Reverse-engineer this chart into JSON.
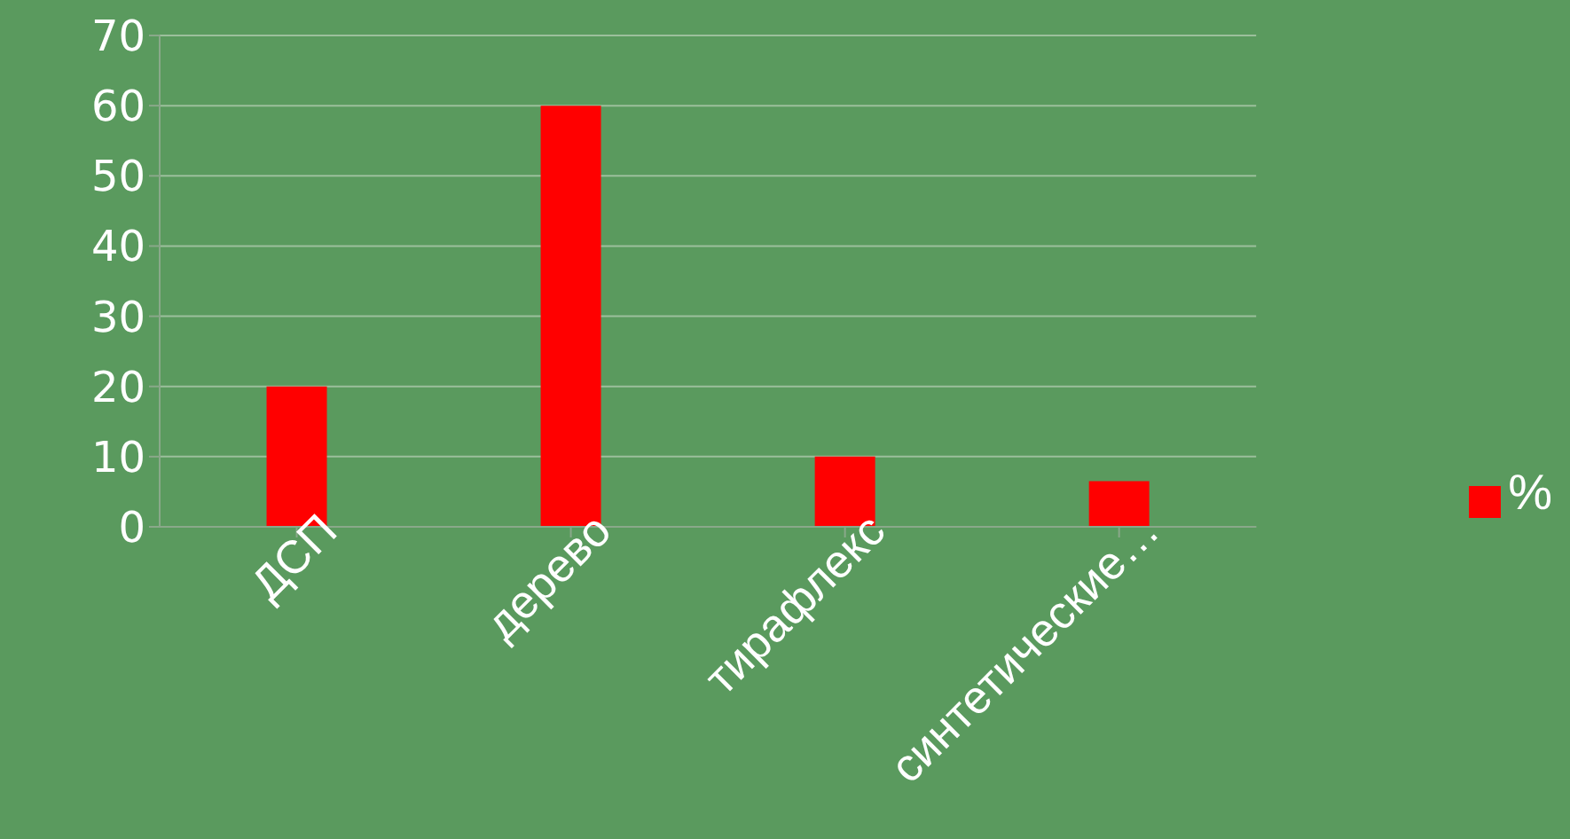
{
  "chart_data": {
    "type": "bar",
    "categories": [
      "ДСП",
      "дерево",
      "тирафлекс",
      "синтетические…"
    ],
    "series": [
      {
        "name": "%",
        "color": "#ff0000",
        "values": [
          20,
          60,
          10,
          6.5
        ]
      }
    ],
    "ylim": [
      0,
      70
    ],
    "yticks": [
      0,
      10,
      20,
      30,
      40,
      50,
      60,
      70
    ],
    "grid": "y",
    "legend": "right"
  }
}
